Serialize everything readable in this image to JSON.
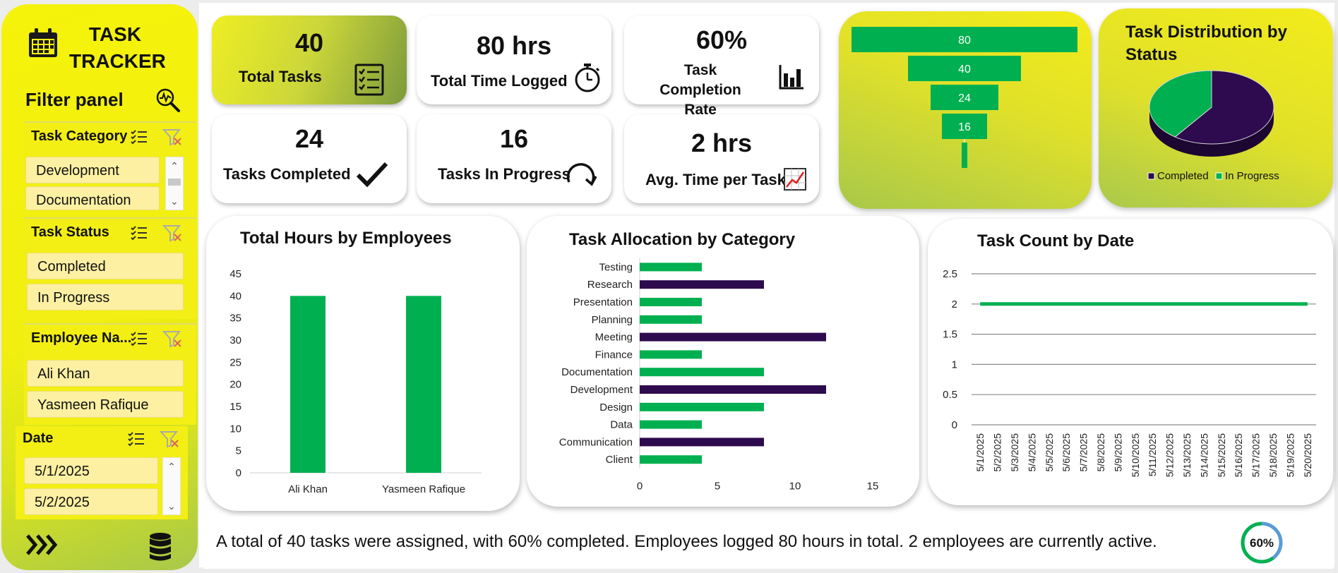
{
  "app": {
    "title_line1": "TASK",
    "title_line2": "TRACKER",
    "filter_panel_label": "Filter panel"
  },
  "slicers": [
    {
      "header": "Task Category",
      "items": [
        "Development",
        "Documentation"
      ]
    },
    {
      "header": "Task Status",
      "items": [
        "Completed",
        "In Progress"
      ]
    },
    {
      "header": "Employee Na...",
      "items": [
        "Ali Khan",
        "Yasmeen Rafique"
      ]
    },
    {
      "header": "Date",
      "items": [
        "5/1/2025",
        "5/2/2025"
      ]
    }
  ],
  "kpis": {
    "total_tasks": {
      "value": "40",
      "label": "Total Tasks"
    },
    "total_time": {
      "value": "80 hrs",
      "label": "Total Time Logged"
    },
    "completion_rate": {
      "value": "60%",
      "label_line1": "Task Completion",
      "label_line2": "Rate"
    },
    "tasks_completed": {
      "value": "24",
      "label": "Tasks Completed"
    },
    "tasks_in_progress": {
      "value": "16",
      "label": "Tasks In Progress"
    },
    "avg_time": {
      "value": "2 hrs",
      "label": "Avg. Time per Task"
    }
  },
  "colors": {
    "green": "#00b050",
    "purple": "#2e0a4f",
    "yellow": "#f3ef14"
  },
  "chart_data": [
    {
      "type": "bar",
      "id": "funnel",
      "categories": [
        "",
        "",
        "",
        "",
        ""
      ],
      "values": [
        80,
        40,
        24,
        16,
        2
      ],
      "data_labels": [
        "80",
        "40",
        "24",
        "16",
        ""
      ]
    },
    {
      "type": "pie",
      "id": "status-pie",
      "title": "Task Distribution by Status",
      "labels": [
        "Completed",
        "In Progress"
      ],
      "values": [
        24,
        16
      ],
      "colors": [
        "#2e0a4f",
        "#00b050"
      ],
      "legend": "bottom"
    },
    {
      "type": "bar",
      "id": "hours-by-employee",
      "title": "Total Hours by Employees",
      "categories": [
        "Ali Khan",
        "Yasmeen Rafique"
      ],
      "values": [
        40,
        40
      ],
      "ylim": [
        0,
        45
      ],
      "yticks": [
        "0",
        "5",
        "10",
        "15",
        "20",
        "25",
        "30",
        "35",
        "40",
        "45"
      ]
    },
    {
      "type": "bar",
      "id": "allocation-by-category",
      "orientation": "horizontal",
      "title": "Task Allocation by Category",
      "categories": [
        "Testing",
        "Research",
        "Presentation",
        "Planning",
        "Meeting",
        "Finance",
        "Documentation",
        "Development",
        "Design",
        "Data",
        "Communication",
        "Client"
      ],
      "values": [
        4,
        8,
        4,
        4,
        12,
        4,
        8,
        12,
        8,
        4,
        8,
        4
      ],
      "highlight": [
        false,
        true,
        false,
        false,
        true,
        false,
        false,
        true,
        false,
        false,
        true,
        false
      ],
      "xlim": [
        0,
        15
      ],
      "xticks": [
        "0",
        "5",
        "10",
        "15"
      ]
    },
    {
      "type": "line",
      "id": "count-by-date",
      "title": "Task Count by Date",
      "x": [
        "5/1/2025",
        "5/2/2025",
        "5/3/2025",
        "5/4/2025",
        "5/5/2025",
        "5/6/2025",
        "5/7/2025",
        "5/8/2025",
        "5/9/2025",
        "5/10/2025",
        "5/11/2025",
        "5/12/2025",
        "5/13/2025",
        "5/14/2025",
        "5/15/2025",
        "5/16/2025",
        "5/17/2025",
        "5/18/2025",
        "5/19/2025",
        "5/20/2025"
      ],
      "values": [
        2,
        2,
        2,
        2,
        2,
        2,
        2,
        2,
        2,
        2,
        2,
        2,
        2,
        2,
        2,
        2,
        2,
        2,
        2,
        2
      ],
      "ylim": [
        0,
        2.5
      ],
      "yticks": [
        "0",
        "0.5",
        "1",
        "1.5",
        "2",
        "2.5"
      ],
      "grid": true
    }
  ],
  "summary": {
    "text": "A total of 40 tasks were assigned, with 60% completed. Employees logged 80 hours in total. 2 employees are currently active.",
    "gauge_label": "60%",
    "gauge_value": 0.6
  }
}
